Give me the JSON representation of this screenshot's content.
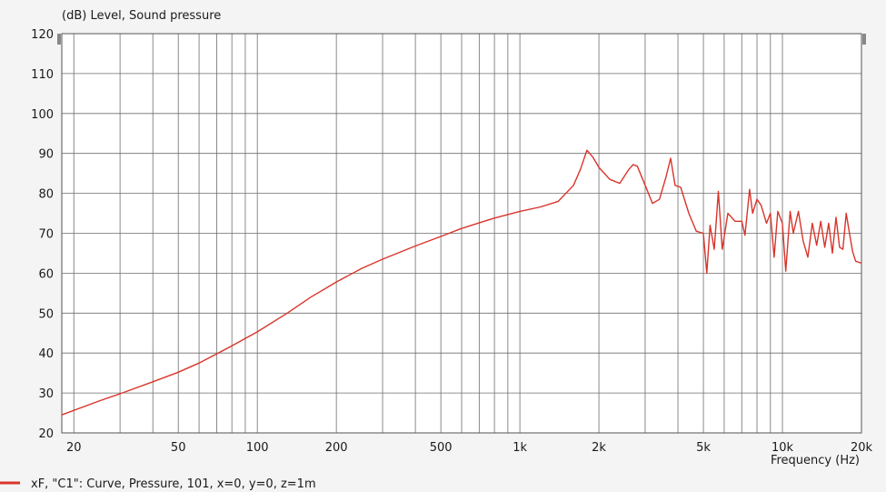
{
  "chart_data": {
    "type": "line",
    "ylabel": "(dB)  Level, Sound pressure",
    "xlabel": "Frequency  (Hz)",
    "x_scale": "log",
    "xlim": [
      18,
      20000
    ],
    "ylim": [
      20,
      120
    ],
    "grid": true,
    "x_ticks": [
      {
        "value": 20,
        "label": "20"
      },
      {
        "value": 50,
        "label": "50"
      },
      {
        "value": 100,
        "label": "100"
      },
      {
        "value": 200,
        "label": "200"
      },
      {
        "value": 500,
        "label": "500"
      },
      {
        "value": 1000,
        "label": "1k"
      },
      {
        "value": 2000,
        "label": "2k"
      },
      {
        "value": 5000,
        "label": "5k"
      },
      {
        "value": 10000,
        "label": "10k"
      },
      {
        "value": 20000,
        "label": "20k"
      }
    ],
    "y_ticks": [
      20,
      30,
      40,
      50,
      60,
      70,
      80,
      90,
      100,
      110,
      120
    ],
    "legend_position": "bottom-left",
    "series": [
      {
        "name": "xF, \"C1\": Curve, Pressure, 101, x=0, y=0, z=1m",
        "color": "#d9342b",
        "x": [
          18,
          25,
          30,
          40,
          50,
          60,
          80,
          100,
          130,
          160,
          200,
          250,
          300,
          400,
          500,
          600,
          700,
          800,
          1000,
          1200,
          1400,
          1600,
          1700,
          1800,
          1900,
          2000,
          2200,
          2400,
          2600,
          2700,
          2800,
          3000,
          3200,
          3400,
          3600,
          3750,
          3900,
          4100,
          4400,
          4700,
          5000,
          5150,
          5300,
          5500,
          5700,
          5900,
          6200,
          6600,
          7000,
          7200,
          7500,
          7700,
          8000,
          8300,
          8700,
          9000,
          9300,
          9600,
          10000,
          10300,
          10700,
          11000,
          11500,
          12000,
          12500,
          13000,
          13500,
          14000,
          14500,
          15000,
          15500,
          16000,
          16500,
          17000,
          17500,
          18000,
          18500,
          19000,
          20000
        ],
        "y": [
          24.5,
          28,
          29.8,
          32.8,
          35.2,
          37.5,
          41.8,
          45.3,
          50,
          54,
          57.8,
          61.2,
          63.5,
          66.8,
          69.2,
          71.2,
          72.6,
          73.8,
          75.5,
          76.6,
          78,
          82,
          86,
          90.8,
          89,
          86.5,
          83.5,
          82.5,
          86,
          87.2,
          86.8,
          82,
          77.5,
          78.5,
          84,
          88.8,
          82,
          81.5,
          75,
          70.5,
          70,
          60,
          72,
          66,
          80.5,
          66,
          75,
          73,
          73,
          69.5,
          81,
          75,
          78.5,
          77,
          72.5,
          75,
          64,
          75.5,
          72.5,
          60.5,
          75.5,
          70,
          75.5,
          68,
          64,
          72.5,
          67,
          73,
          66.5,
          72.5,
          65,
          74,
          66.5,
          66,
          75,
          70,
          65.5,
          63,
          62.5
        ]
      }
    ]
  }
}
